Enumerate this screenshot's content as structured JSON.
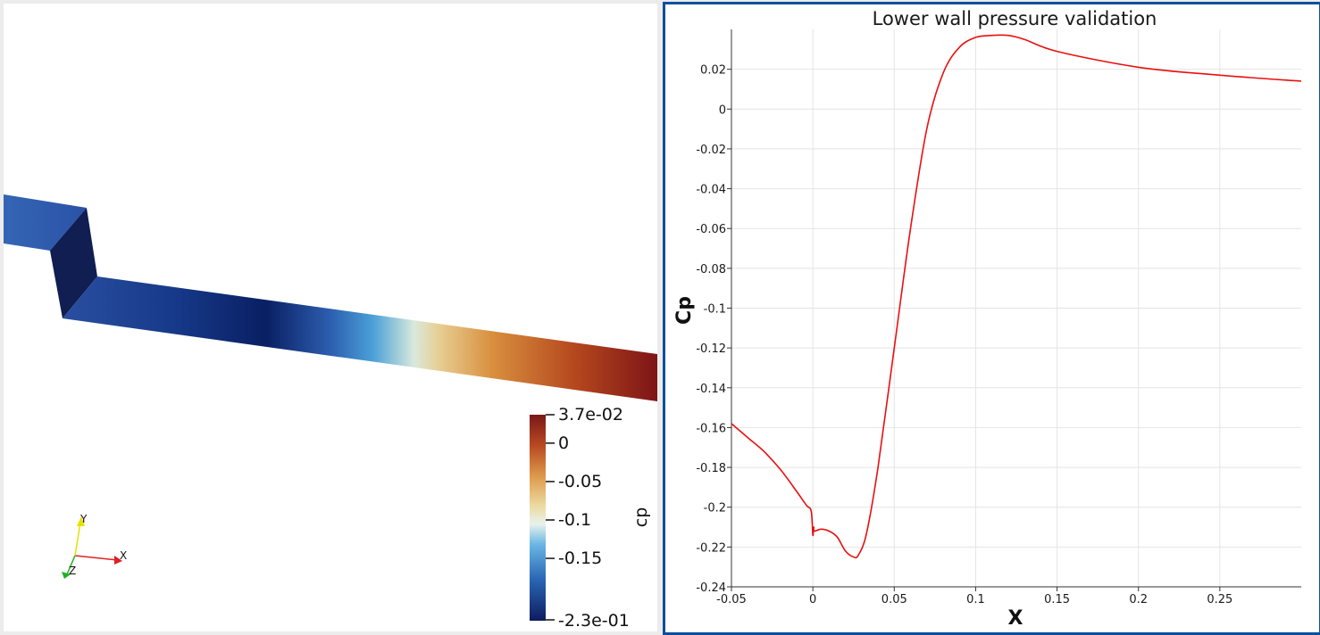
{
  "render_view": {
    "colorbar": {
      "title": "cp",
      "max_label": "3.7e-02",
      "min_label": "-2.3e-01",
      "ticks": [
        {
          "label": "0",
          "value": 0
        },
        {
          "label": "-0.05",
          "value": -0.05
        },
        {
          "label": "-0.1",
          "value": -0.1
        },
        {
          "label": "-0.15",
          "value": -0.15
        }
      ],
      "range": [
        -0.23,
        0.037
      ]
    },
    "triad": {
      "x": "X",
      "y": "Y",
      "z": "Z"
    },
    "colors": {
      "x_axis": "#e02020",
      "y_axis": "#e8e000",
      "z_axis": "#20b020"
    }
  },
  "plot_view": {
    "chart_data": {
      "type": "line",
      "title": "Lower wall pressure validation",
      "xlabel": "X",
      "ylabel": "Cp",
      "xlim": [
        -0.05,
        0.3
      ],
      "ylim": [
        -0.24,
        0.04
      ],
      "grid": true,
      "xticks": [
        "-0.05",
        "0",
        "0.05",
        "0.1",
        "0.15",
        "0.2",
        "0.25"
      ],
      "yticks": [
        "0.02",
        "0",
        "-0.02",
        "-0.04",
        "-0.06",
        "-0.08",
        "-0.1",
        "-0.12",
        "-0.14",
        "-0.16",
        "-0.18",
        "-0.2",
        "-0.22",
        "-0.24"
      ],
      "series": [
        {
          "color": "#e81010",
          "x": [
            -0.05,
            -0.04,
            -0.03,
            -0.02,
            -0.01,
            -0.004,
            -0.001,
            0.0,
            0.0005,
            0.001,
            0.005,
            0.01,
            0.015,
            0.02,
            0.025,
            0.028,
            0.033,
            0.04,
            0.05,
            0.06,
            0.07,
            0.08,
            0.09,
            0.1,
            0.11,
            0.12,
            0.13,
            0.15,
            0.2,
            0.25,
            0.3
          ],
          "y": [
            -0.158,
            -0.165,
            -0.172,
            -0.181,
            -0.192,
            -0.199,
            -0.202,
            -0.214,
            -0.21,
            -0.212,
            -0.211,
            -0.212,
            -0.215,
            -0.222,
            -0.225,
            -0.224,
            -0.213,
            -0.18,
            -0.12,
            -0.06,
            -0.01,
            0.018,
            0.031,
            0.036,
            0.037,
            0.037,
            0.035,
            0.029,
            0.021,
            0.017,
            0.014
          ]
        }
      ]
    }
  }
}
